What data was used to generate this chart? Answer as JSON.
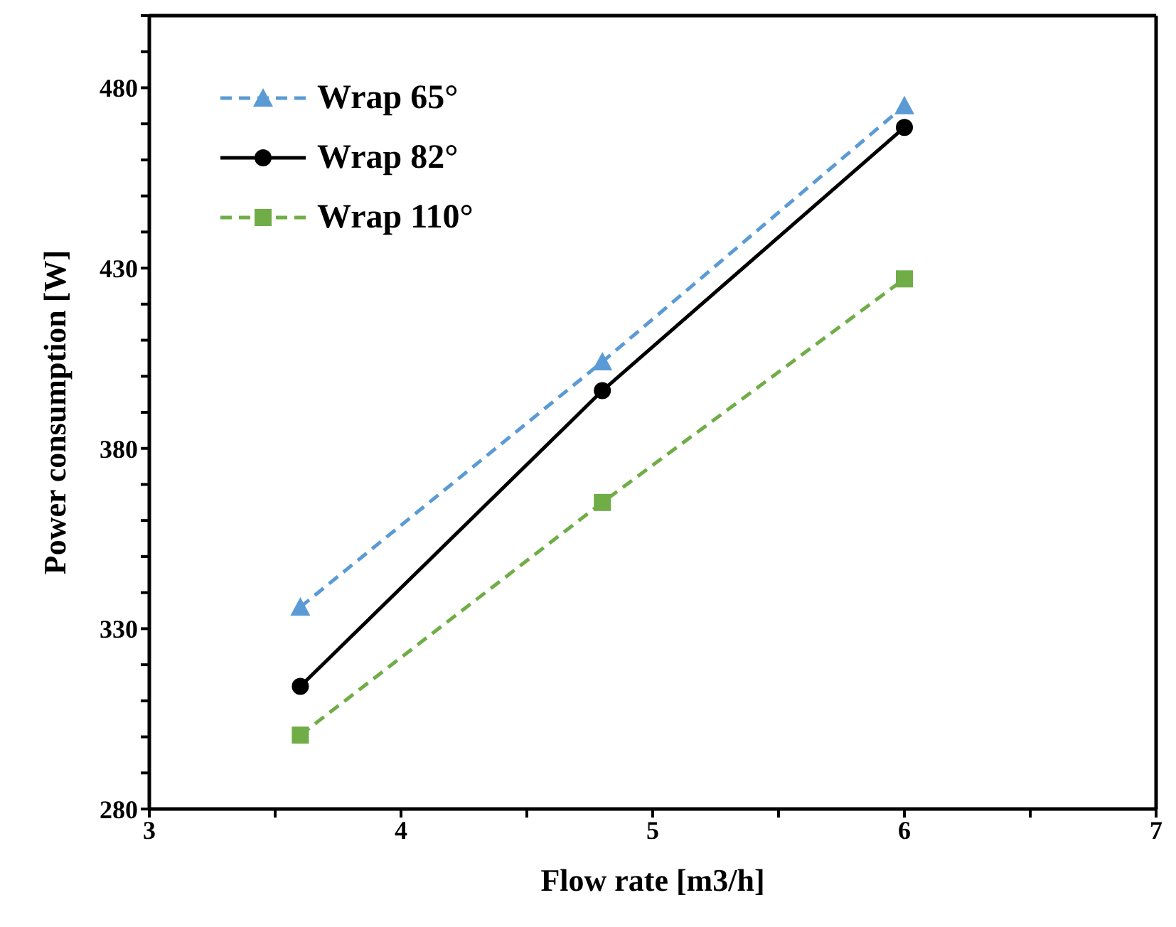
{
  "chart_data": {
    "type": "line",
    "xlabel": "Flow rate [m3/h]",
    "ylabel": "Power consumption [W]",
    "xlim": [
      3,
      7
    ],
    "xticks": [
      3,
      {
        "value": 3.5,
        "label": null
      },
      4,
      {
        "value": 4.5,
        "label": null
      },
      5,
      {
        "value": 5.5,
        "label": null
      },
      6,
      {
        "value": 6.5,
        "label": null
      },
      7
    ],
    "ylim": [
      280,
      500
    ],
    "yticks": [
      280,
      {
        "value": 290,
        "label": null
      },
      {
        "value": 300,
        "label": null
      },
      {
        "value": 310,
        "label": null
      },
      {
        "value": 320,
        "label": null
      },
      330,
      {
        "value": 340,
        "label": null
      },
      {
        "value": 350,
        "label": null
      },
      {
        "value": 360,
        "label": null
      },
      {
        "value": 370,
        "label": null
      },
      380,
      {
        "value": 390,
        "label": null
      },
      {
        "value": 400,
        "label": null
      },
      {
        "value": 410,
        "label": null
      },
      {
        "value": 420,
        "label": null
      },
      430,
      {
        "value": 440,
        "label": null
      },
      {
        "value": 450,
        "label": null
      },
      {
        "value": 460,
        "label": null
      },
      {
        "value": 470,
        "label": null
      },
      480,
      {
        "value": 490,
        "label": null
      },
      {
        "value": 500,
        "label": null
      }
    ],
    "grid": false,
    "legend": "top left",
    "x": [
      3.6,
      4.8,
      6
    ],
    "series": [
      {
        "name": "Wrap 65°",
        "color": "#5b9bd5",
        "marker": "triangle",
        "line_style": "dashed",
        "values": [
          336,
          404,
          475
        ]
      },
      {
        "name": "Wrap 82°",
        "color": "#000000",
        "marker": "circle",
        "line_style": "solid",
        "values": [
          314,
          396,
          469
        ]
      },
      {
        "name": "Wrap 110°",
        "color": "#70ad47",
        "marker": "square",
        "line_style": "dashed",
        "values": [
          300.5,
          365,
          427
        ]
      }
    ]
  }
}
